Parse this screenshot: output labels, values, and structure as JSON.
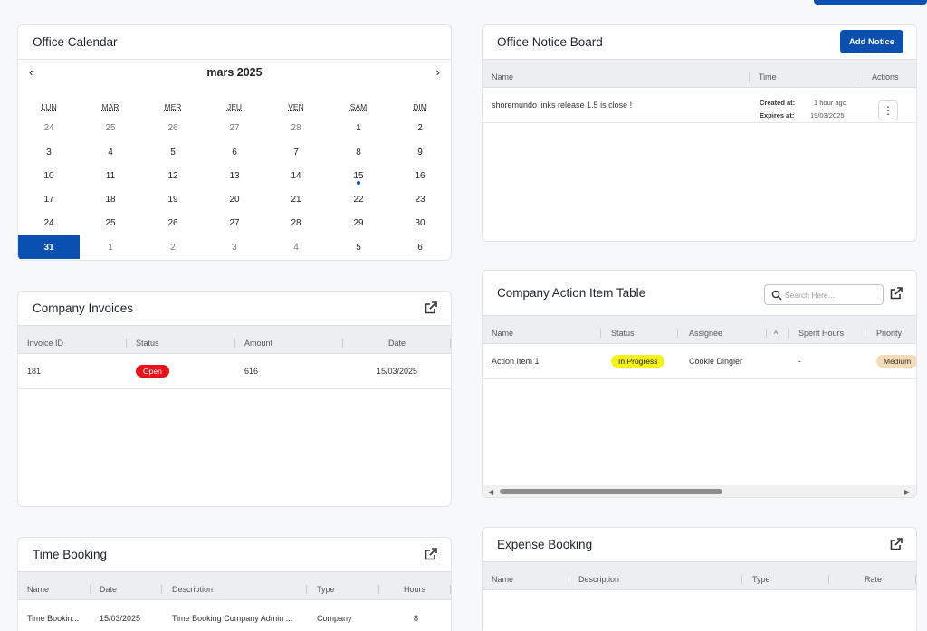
{
  "calendar": {
    "title": "Office Calendar",
    "month": "mars 2025",
    "prev": "‹",
    "next": "›",
    "dow": [
      "LUN",
      "MAR",
      "MER",
      "JEU",
      "VEN",
      "SAM",
      "DIM"
    ],
    "weeks": [
      [
        "24",
        "25",
        "26",
        "27",
        "28",
        "1",
        "2"
      ],
      [
        "3",
        "4",
        "5",
        "6",
        "7",
        "8",
        "9"
      ],
      [
        "10",
        "11",
        "12",
        "13",
        "14",
        "15",
        "16"
      ],
      [
        "17",
        "18",
        "19",
        "20",
        "21",
        "22",
        "23"
      ],
      [
        "24",
        "25",
        "26",
        "27",
        "28",
        "29",
        "30"
      ],
      [
        "31",
        "1",
        "2",
        "3",
        "4",
        "5",
        "6"
      ]
    ]
  },
  "notice": {
    "title": "Office Notice Board",
    "add_label": "Add Notice",
    "headers": {
      "name": "Name",
      "time": "Time",
      "actions": "Actions"
    },
    "row": {
      "text": "shoremundo links release 1.5 is close !",
      "created_label": "Created at:",
      "created_value": "1 hour ago",
      "expires_label": "Expires at:",
      "expires_value": "19/03/2025",
      "kebab": "⋮"
    }
  },
  "invoices": {
    "title": "Company Invoices",
    "headers": {
      "id": "Invoice ID",
      "status": "Status",
      "amount": "Amount",
      "date": "Date"
    },
    "row": {
      "id": "181",
      "status": "Open",
      "amount": "616",
      "date": "15/03/2025"
    },
    "colors": {
      "open": "#e8121b"
    }
  },
  "actions": {
    "title": "Company Action Item Table",
    "search_placeholder": "Search Here...",
    "headers": {
      "name": "Name",
      "status": "Status",
      "assignee": "Assignee",
      "a": "A",
      "spent": "Spent Hours",
      "priority": "Priority"
    },
    "row": {
      "name": "Action Item 1",
      "status": "In Progress",
      "assignee": "Cookie Dingler",
      "spent": "-",
      "priority": "Medium"
    },
    "scroll_left": "◀",
    "scroll_right": "▶"
  },
  "time_booking": {
    "title": "Time Booking",
    "headers": {
      "name": "Name",
      "date": "Date",
      "description": "Description",
      "type": "Type",
      "hours": "Hours"
    },
    "row": {
      "name": "Time Bookin...",
      "date": "15/03/2025",
      "description": "Time Booking Company Admin ...",
      "type": "Company",
      "hours": "8"
    }
  },
  "expense": {
    "title": "Expense Booking",
    "headers": {
      "name": "Name",
      "description": "Description",
      "type": "Type",
      "rate": "Rate"
    }
  },
  "icons": {
    "external": "external-link-icon",
    "search": "search-icon",
    "kebab": "kebab-menu-icon"
  },
  "theme": {
    "accent": "#0a50b0"
  }
}
